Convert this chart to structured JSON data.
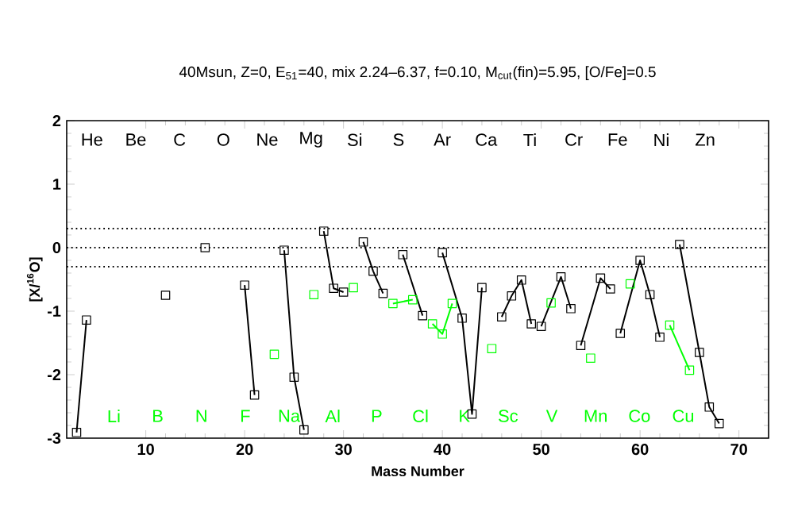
{
  "chart_data": {
    "type": "line",
    "title": "40Msun, Z=0, E$_{51}$=40, mix 2.24–6.37, f=0.10, M$_{cut}$(fin)=5.95, [O/Fe]=0.5",
    "xlabel": "Mass Number",
    "ylabel": "[X/$^{16}$O]",
    "xlim": [
      2,
      73
    ],
    "xticks": [
      10,
      20,
      30,
      40,
      50,
      60,
      70
    ],
    "ylim": [
      -3,
      2
    ],
    "yticks": [
      -3,
      -2,
      -1,
      0,
      1,
      2
    ],
    "marker": "square",
    "line_style": "solid",
    "annotations": [
      "He",
      "Li",
      "Be",
      "B",
      "C",
      "N",
      "O",
      "F",
      "Ne",
      "Na",
      "Mg",
      "Al",
      "Si",
      "P",
      "S",
      "Cl",
      "Ar",
      "K",
      "Ca",
      "Sc",
      "Ti",
      "V",
      "Cr",
      "Mn",
      "Fe",
      "Co",
      "Ni",
      "Cu",
      "Zn"
    ],
    "ref_lines": [
      {
        "axis": "y",
        "value": 0.3,
        "color": "#000000",
        "line_style": "dotted"
      },
      {
        "axis": "y",
        "value": 0,
        "color": "#000000",
        "line_style": "dotted"
      },
      {
        "axis": "y",
        "value": -0.3,
        "color": "#000000",
        "line_style": "dotted"
      }
    ],
    "series": [
      {
        "color": "#000000",
        "x": [
          3,
          4
        ],
        "values": [
          -2.91,
          -1.14
        ]
      },
      {
        "color": "#000000",
        "x": [
          12
        ],
        "values": [
          -0.75
        ]
      },
      {
        "color": "#000000",
        "x": [
          16
        ],
        "values": [
          0.0
        ]
      },
      {
        "color": "#000000",
        "x": [
          20,
          21
        ],
        "values": [
          -0.59,
          -2.32
        ]
      },
      {
        "color": "#00ff00",
        "x": [
          23
        ],
        "values": [
          -1.68
        ]
      },
      {
        "color": "#000000",
        "x": [
          24,
          25,
          26
        ],
        "values": [
          -0.04,
          -2.04,
          -2.87
        ]
      },
      {
        "color": "#00ff00",
        "x": [
          27
        ],
        "values": [
          -0.74
        ]
      },
      {
        "color": "#000000",
        "x": [
          28,
          29,
          30
        ],
        "values": [
          0.26,
          -0.64,
          -0.7
        ]
      },
      {
        "color": "#00ff00",
        "x": [
          31
        ],
        "values": [
          -0.63
        ]
      },
      {
        "color": "#000000",
        "x": [
          32,
          33,
          34
        ],
        "values": [
          0.09,
          -0.37,
          -0.72
        ]
      },
      {
        "color": "#00ff00",
        "x": [
          35,
          37
        ],
        "values": [
          -0.88,
          -0.82
        ]
      },
      {
        "color": "#000000",
        "x": [
          36,
          38
        ],
        "values": [
          -0.11,
          -1.07
        ]
      },
      {
        "color": "#00ff00",
        "x": [
          39,
          40,
          41
        ],
        "values": [
          -1.2,
          -1.36,
          -0.88
        ]
      },
      {
        "color": "#000000",
        "x": [
          40,
          42,
          43,
          44
        ],
        "values": [
          -0.08,
          -1.11,
          -2.62,
          -0.63
        ]
      },
      {
        "color": "#00ff00",
        "x": [
          45
        ],
        "values": [
          -1.59
        ]
      },
      {
        "color": "#000000",
        "x": [
          46,
          47,
          48,
          49
        ],
        "values": [
          -1.09,
          -0.76,
          -0.51,
          -1.2
        ]
      },
      {
        "color": "#00ff00",
        "x": [
          51
        ],
        "values": [
          -0.87
        ]
      },
      {
        "color": "#000000",
        "x": [
          50,
          52,
          53
        ],
        "values": [
          -1.24,
          -0.46,
          -0.96
        ]
      },
      {
        "color": "#00ff00",
        "x": [
          55
        ],
        "values": [
          -1.74
        ]
      },
      {
        "color": "#000000",
        "x": [
          54,
          56,
          57
        ],
        "values": [
          -1.54,
          -0.48,
          -0.65
        ]
      },
      {
        "color": "#00ff00",
        "x": [
          59
        ],
        "values": [
          -0.57
        ]
      },
      {
        "color": "#000000",
        "x": [
          58,
          60,
          61,
          62
        ],
        "values": [
          -1.35,
          -0.2,
          -0.74,
          -1.41
        ]
      },
      {
        "color": "#00ff00",
        "x": [
          63,
          65
        ],
        "values": [
          -1.22,
          -1.93
        ]
      },
      {
        "color": "#000000",
        "x": [
          64,
          66,
          67,
          68
        ],
        "values": [
          0.05,
          -1.65,
          -2.51,
          -2.77
        ]
      }
    ]
  }
}
